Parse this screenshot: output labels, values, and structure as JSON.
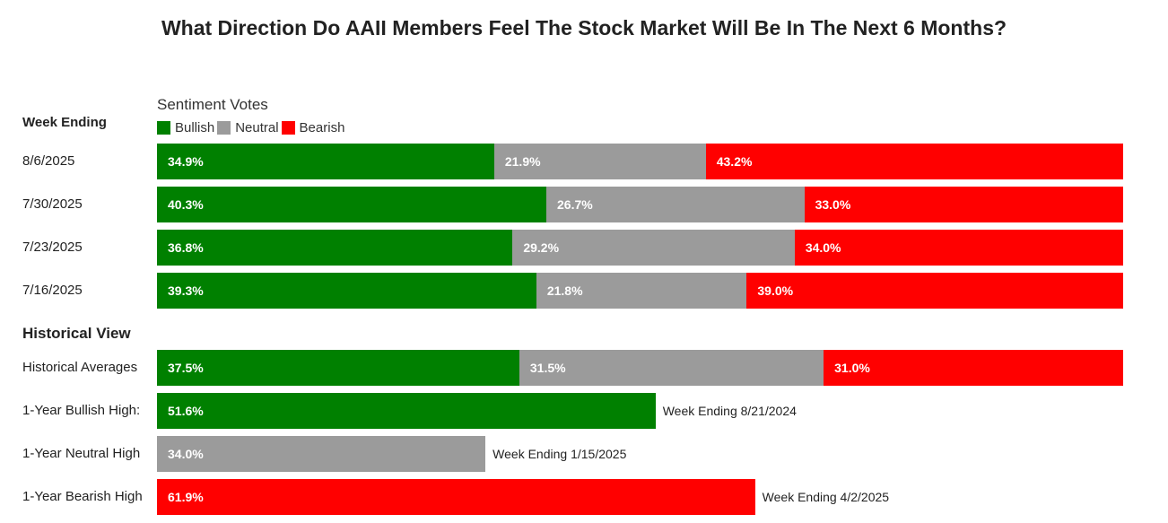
{
  "chart_data": {
    "type": "bar",
    "orientation": "horizontal",
    "stacked": true,
    "title": "What Direction Do AAII Members Feel The Stock Market Will Be In The Next 6 Months?",
    "legend_title": "Sentiment Votes",
    "row_header": "Week Ending",
    "section_header": "Historical View",
    "series": [
      {
        "name": "Bullish",
        "color": "#008000"
      },
      {
        "name": "Neutral",
        "color": "#9b9b9b"
      },
      {
        "name": "Bearish",
        "color": "#ff0000"
      }
    ],
    "weekly": [
      {
        "label": "8/6/2025",
        "values": [
          34.9,
          21.9,
          43.2
        ],
        "texts": [
          "34.9%",
          "21.9%",
          "43.2%"
        ]
      },
      {
        "label": "7/30/2025",
        "values": [
          40.3,
          26.7,
          33.0
        ],
        "texts": [
          "40.3%",
          "26.7%",
          "33.0%"
        ]
      },
      {
        "label": "7/23/2025",
        "values": [
          36.8,
          29.2,
          34.0
        ],
        "texts": [
          "36.8%",
          "29.2%",
          "34.0%"
        ]
      },
      {
        "label": "7/16/2025",
        "values": [
          39.3,
          21.8,
          39.0
        ],
        "texts": [
          "39.3%",
          "21.8%",
          "39.0%"
        ]
      }
    ],
    "historical_averages": {
      "label": "Historical Averages",
      "values": [
        37.5,
        31.5,
        31.0
      ],
      "texts": [
        "37.5%",
        "31.5%",
        "31.0%"
      ]
    },
    "highs": [
      {
        "label": "1-Year Bullish High:",
        "series": 0,
        "value": 51.6,
        "text": "51.6%",
        "note": "Week Ending 8/21/2024"
      },
      {
        "label": "1-Year Neutral High",
        "series": 1,
        "value": 34.0,
        "text": "34.0%",
        "note": "Week Ending 1/15/2025"
      },
      {
        "label": "1-Year Bearish High",
        "series": 2,
        "value": 61.9,
        "text": "61.9%",
        "note": "Week Ending 4/2/2025"
      }
    ]
  }
}
